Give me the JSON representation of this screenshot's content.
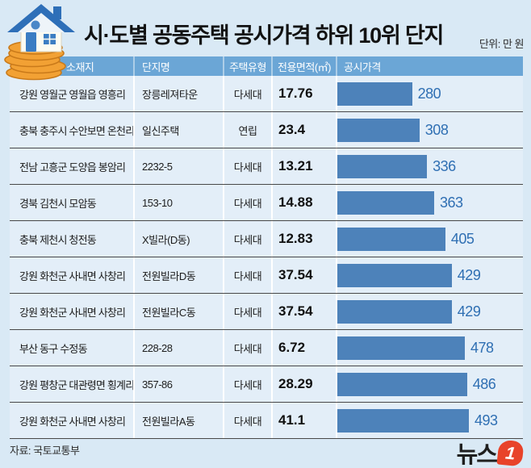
{
  "page": {
    "title": "시·도별 공동주택 공시가격 하위 10위 단지",
    "unit_label": "단위: 만 원"
  },
  "table": {
    "columns": [
      "소재지",
      "단지명",
      "주택유형",
      "전용면적(㎡)",
      "공시가격"
    ],
    "rows": [
      {
        "location": "강원 영월군 영월읍 영흥리",
        "complex": "장릉레져타운",
        "type": "다세대",
        "area": "17.76",
        "price": 280
      },
      {
        "location": "충북 충주시 수안보면 온천리",
        "complex": "일신주택",
        "type": "연립",
        "area": "23.4",
        "price": 308
      },
      {
        "location": "전남 고흥군 도양읍 봉암리",
        "complex": "2232-5",
        "type": "다세대",
        "area": "13.21",
        "price": 336
      },
      {
        "location": "경북 김천시 모암동",
        "complex": "153-10",
        "type": "다세대",
        "area": "14.88",
        "price": 363
      },
      {
        "location": "충북 제천시 청전동",
        "complex": "X빌라(D동)",
        "type": "다세대",
        "area": "12.83",
        "price": 405
      },
      {
        "location": "강원 화천군 사내면 사창리",
        "complex": "전원빌라D동",
        "type": "다세대",
        "area": "37.54",
        "price": 429
      },
      {
        "location": "강원 화천군 사내면 사창리",
        "complex": "전원빌라C동",
        "type": "다세대",
        "area": "37.54",
        "price": 429
      },
      {
        "location": "부산 동구 수정동",
        "complex": "228-28",
        "type": "다세대",
        "area": "6.72",
        "price": 478
      },
      {
        "location": "강원 평창군 대관령면 횡계리",
        "complex": "357-86",
        "type": "다세대",
        "area": "28.29",
        "price": 486
      },
      {
        "location": "강원 화천군 사내면 사창리",
        "complex": "전원빌라A동",
        "type": "다세대",
        "area": "41.1",
        "price": 493
      }
    ]
  },
  "footer": {
    "source": "자료: 국토교통부",
    "logo_text": "뉴스",
    "logo_number": "1"
  },
  "colors": {
    "background": "#d9e9f5",
    "header_bg": "#6ba6d6",
    "bar_blue": "#4d82ba",
    "value_text": "#2f6fb3",
    "divider": "#484848",
    "logo_red": "#e8432a",
    "coin_gold": "#f2a134",
    "roof_blue": "#2e6fb8"
  },
  "chart_data": {
    "type": "bar",
    "orientation": "horizontal",
    "title": "시·도별 공동주택 공시가격 하위 10위 단지",
    "unit": "만 원",
    "value_field": "공시가격",
    "xlim": [
      0,
      493
    ],
    "categories": [
      "장릉레져타운",
      "일신주택",
      "2232-5",
      "153-10",
      "X빌라(D동)",
      "전원빌라D동",
      "전원빌라C동",
      "228-28",
      "357-86",
      "전원빌라A동"
    ],
    "values": [
      280,
      308,
      336,
      363,
      405,
      429,
      429,
      478,
      486,
      493
    ],
    "areas_m2": [
      17.76,
      23.4,
      13.21,
      14.88,
      12.83,
      37.54,
      37.54,
      6.72,
      28.29,
      41.1
    ],
    "legend": "none",
    "grid": false
  }
}
